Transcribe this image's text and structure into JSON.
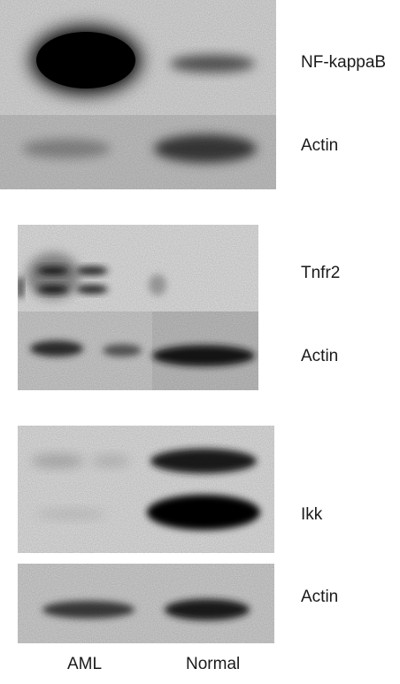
{
  "panels": [
    {
      "label": "NF-kappaB"
    },
    {
      "label": "Actin"
    },
    {
      "label": "Tnfr2"
    },
    {
      "label": "Actin"
    },
    {
      "label": "Ikk"
    },
    {
      "label": "Actin"
    }
  ],
  "lanes": [
    "AML",
    "Normal"
  ]
}
